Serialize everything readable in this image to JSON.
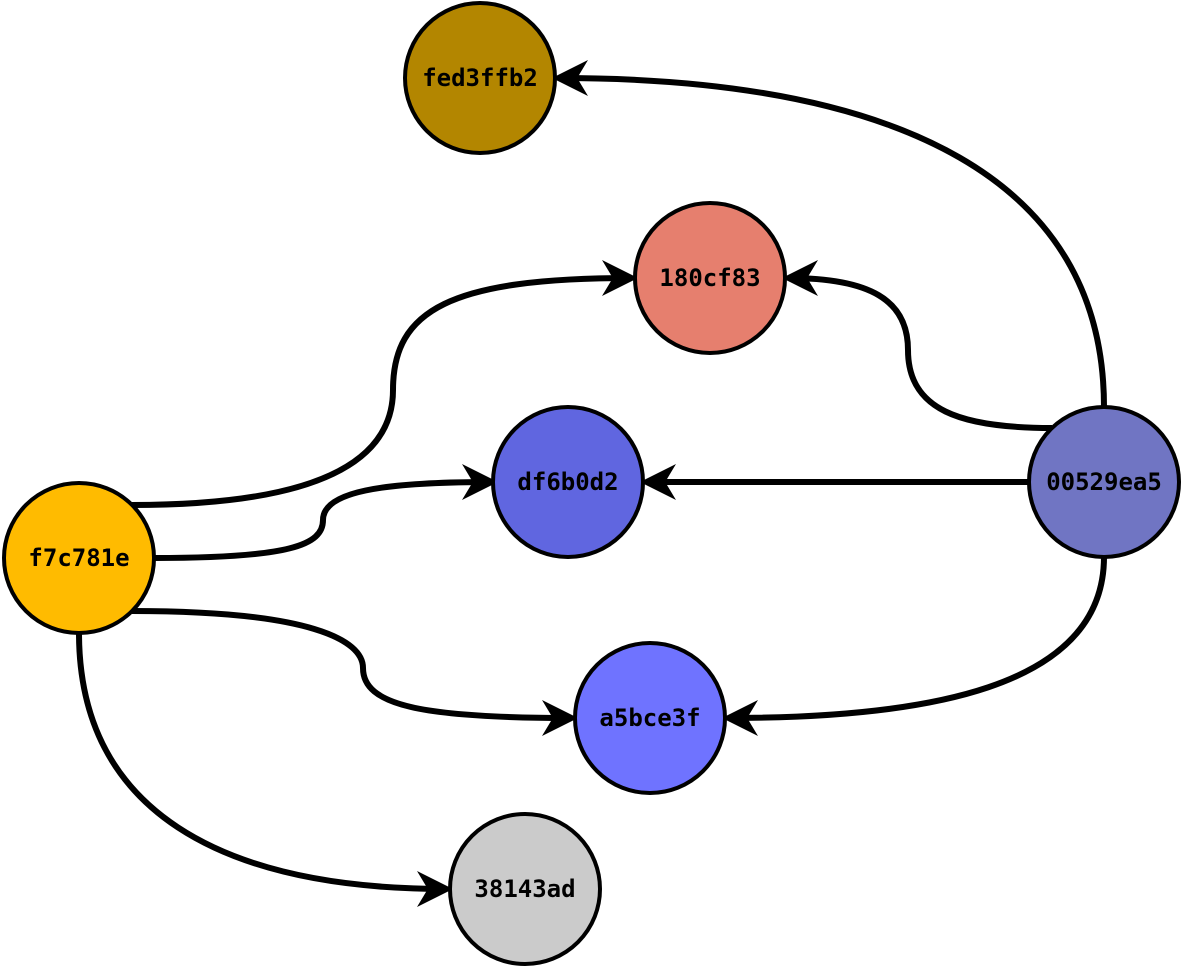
{
  "nodes": [
    {
      "id": "fed3ffb2",
      "label": "fed3ffb2",
      "color": "#b38600"
    },
    {
      "id": "180cf83",
      "label": "180cf83",
      "color": "#e67f6e"
    },
    {
      "id": "df6b0d2",
      "label": "df6b0d2",
      "color": "#6066e0"
    },
    {
      "id": "00529ea5",
      "label": "00529ea5",
      "color": "#7075c3"
    },
    {
      "id": "f7c781e",
      "label": "f7c781e",
      "color": "#ffbb00"
    },
    {
      "id": "a5bce3f",
      "label": "a5bce3f",
      "color": "#6f73ff"
    },
    {
      "id": "38143ad",
      "label": "38143ad",
      "color": "#cbcbcb"
    }
  ],
  "edges": [
    {
      "from": "00529ea5",
      "to": "fed3ffb2"
    },
    {
      "from": "00529ea5",
      "to": "180cf83"
    },
    {
      "from": "00529ea5",
      "to": "df6b0d2"
    },
    {
      "from": "00529ea5",
      "to": "a5bce3f"
    },
    {
      "from": "f7c781e",
      "to": "180cf83"
    },
    {
      "from": "f7c781e",
      "to": "df6b0d2"
    },
    {
      "from": "f7c781e",
      "to": "a5bce3f"
    },
    {
      "from": "f7c781e",
      "to": "38143ad"
    }
  ]
}
